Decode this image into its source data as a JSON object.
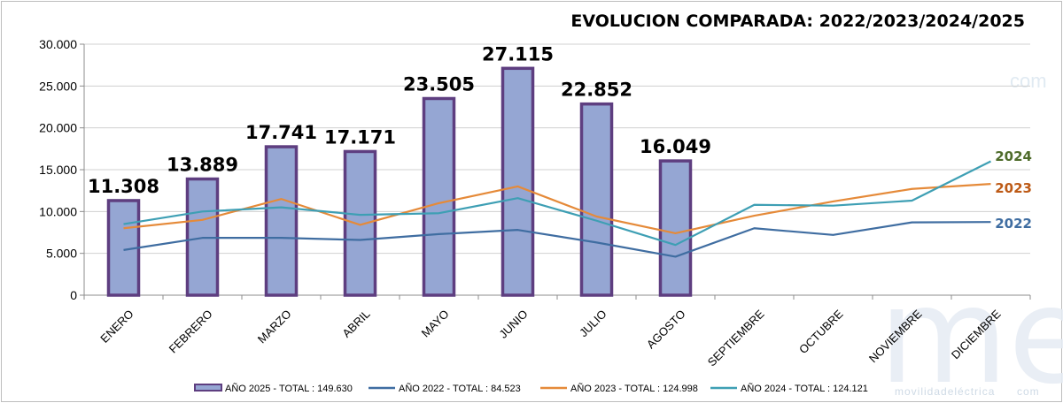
{
  "chart_data": {
    "type": "bar",
    "title": "EVOLUCION COMPARADA: 2022/2023/2024/2025",
    "categories": [
      "ENERO",
      "FEBRERO",
      "MARZO",
      "ABRIL",
      "MAYO",
      "JUNIO",
      "JULIO",
      "AGOSTO",
      "SEPTIEMBRE",
      "OCTUBRE",
      "NOVIEMBRE",
      "DICIEMBRE"
    ],
    "ylim": [
      0,
      30000
    ],
    "yticks": [
      0,
      5000,
      10000,
      15000,
      20000,
      25000,
      30000
    ],
    "ytick_labels": [
      "0",
      "5.000",
      "10.000",
      "15.000",
      "20.000",
      "25.000",
      "30.000"
    ],
    "grid": true,
    "legend_position": "bottom",
    "series": [
      {
        "key": "2025",
        "kind": "bar",
        "legend": "AÑO 2025 - TOTAL : 149.630",
        "values": [
          11308,
          13889,
          17741,
          17171,
          23505,
          27115,
          22852,
          16049,
          null,
          null,
          null,
          null
        ],
        "data_labels": [
          "11.308",
          "13.889",
          "17.741",
          "17.171",
          "23.505",
          "27.115",
          "22.852",
          "16.049"
        ],
        "color": "#95a6d3",
        "border": "#5e3e80"
      },
      {
        "key": "2022",
        "kind": "line",
        "legend": "AÑO 2022 - TOTAL : 84.523",
        "end_label": "2022",
        "values": [
          5400,
          6850,
          6850,
          6600,
          7300,
          7800,
          6300,
          4600,
          8000,
          7200,
          8700,
          8750
        ],
        "color": "#3f6da1"
      },
      {
        "key": "2023",
        "kind": "line",
        "legend": "AÑO 2023 - TOTAL : 124.998",
        "end_label": "2023",
        "values": [
          8000,
          9000,
          11500,
          8400,
          11000,
          13000,
          9400,
          7400,
          9500,
          11200,
          12700,
          13300
        ],
        "color": "#e58a39",
        "label_color": "#bd5a16"
      },
      {
        "key": "2024",
        "kind": "line",
        "legend": "AÑO 2024 - TOTAL : 124.121",
        "end_label": "2024",
        "values": [
          8500,
          10000,
          10500,
          9600,
          9800,
          11600,
          8900,
          6000,
          10800,
          10700,
          11300,
          16000
        ],
        "color": "#3e9fb4",
        "label_color": "#4e6b2a"
      }
    ]
  },
  "watermark": {
    "logo_letters": "me",
    "text": "movilidadeléctrica",
    "dotcom": "com"
  }
}
